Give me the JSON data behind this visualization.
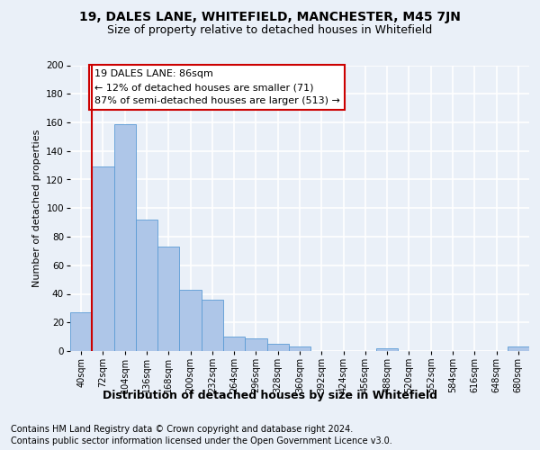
{
  "title1": "19, DALES LANE, WHITEFIELD, MANCHESTER, M45 7JN",
  "title2": "Size of property relative to detached houses in Whitefield",
  "xlabel": "Distribution of detached houses by size in Whitefield",
  "ylabel": "Number of detached properties",
  "bar_labels": [
    "40sqm",
    "72sqm",
    "104sqm",
    "136sqm",
    "168sqm",
    "200sqm",
    "232sqm",
    "264sqm",
    "296sqm",
    "328sqm",
    "360sqm",
    "392sqm",
    "424sqm",
    "456sqm",
    "488sqm",
    "520sqm",
    "552sqm",
    "584sqm",
    "616sqm",
    "648sqm",
    "680sqm"
  ],
  "bar_values": [
    27,
    129,
    159,
    92,
    73,
    43,
    36,
    10,
    9,
    5,
    3,
    0,
    0,
    0,
    2,
    0,
    0,
    0,
    0,
    0,
    3
  ],
  "bar_color": "#aec6e8",
  "bar_edge_color": "#5b9bd5",
  "vline_color": "#cc0000",
  "annotation_box_text": "19 DALES LANE: 86sqm\n← 12% of detached houses are smaller (71)\n87% of semi-detached houses are larger (513) →",
  "box_color": "#ffffff",
  "box_edge_color": "#cc0000",
  "ylim": [
    0,
    200
  ],
  "yticks": [
    0,
    20,
    40,
    60,
    80,
    100,
    120,
    140,
    160,
    180,
    200
  ],
  "footer1": "Contains HM Land Registry data © Crown copyright and database right 2024.",
  "footer2": "Contains public sector information licensed under the Open Government Licence v3.0.",
  "bg_color": "#eaf0f8",
  "plot_bg_color": "#eaf0f8",
  "grid_color": "#ffffff",
  "title1_fontsize": 10,
  "title2_fontsize": 9,
  "annotation_fontsize": 8,
  "footer_fontsize": 7,
  "ylabel_fontsize": 8,
  "xlabel_fontsize": 9
}
